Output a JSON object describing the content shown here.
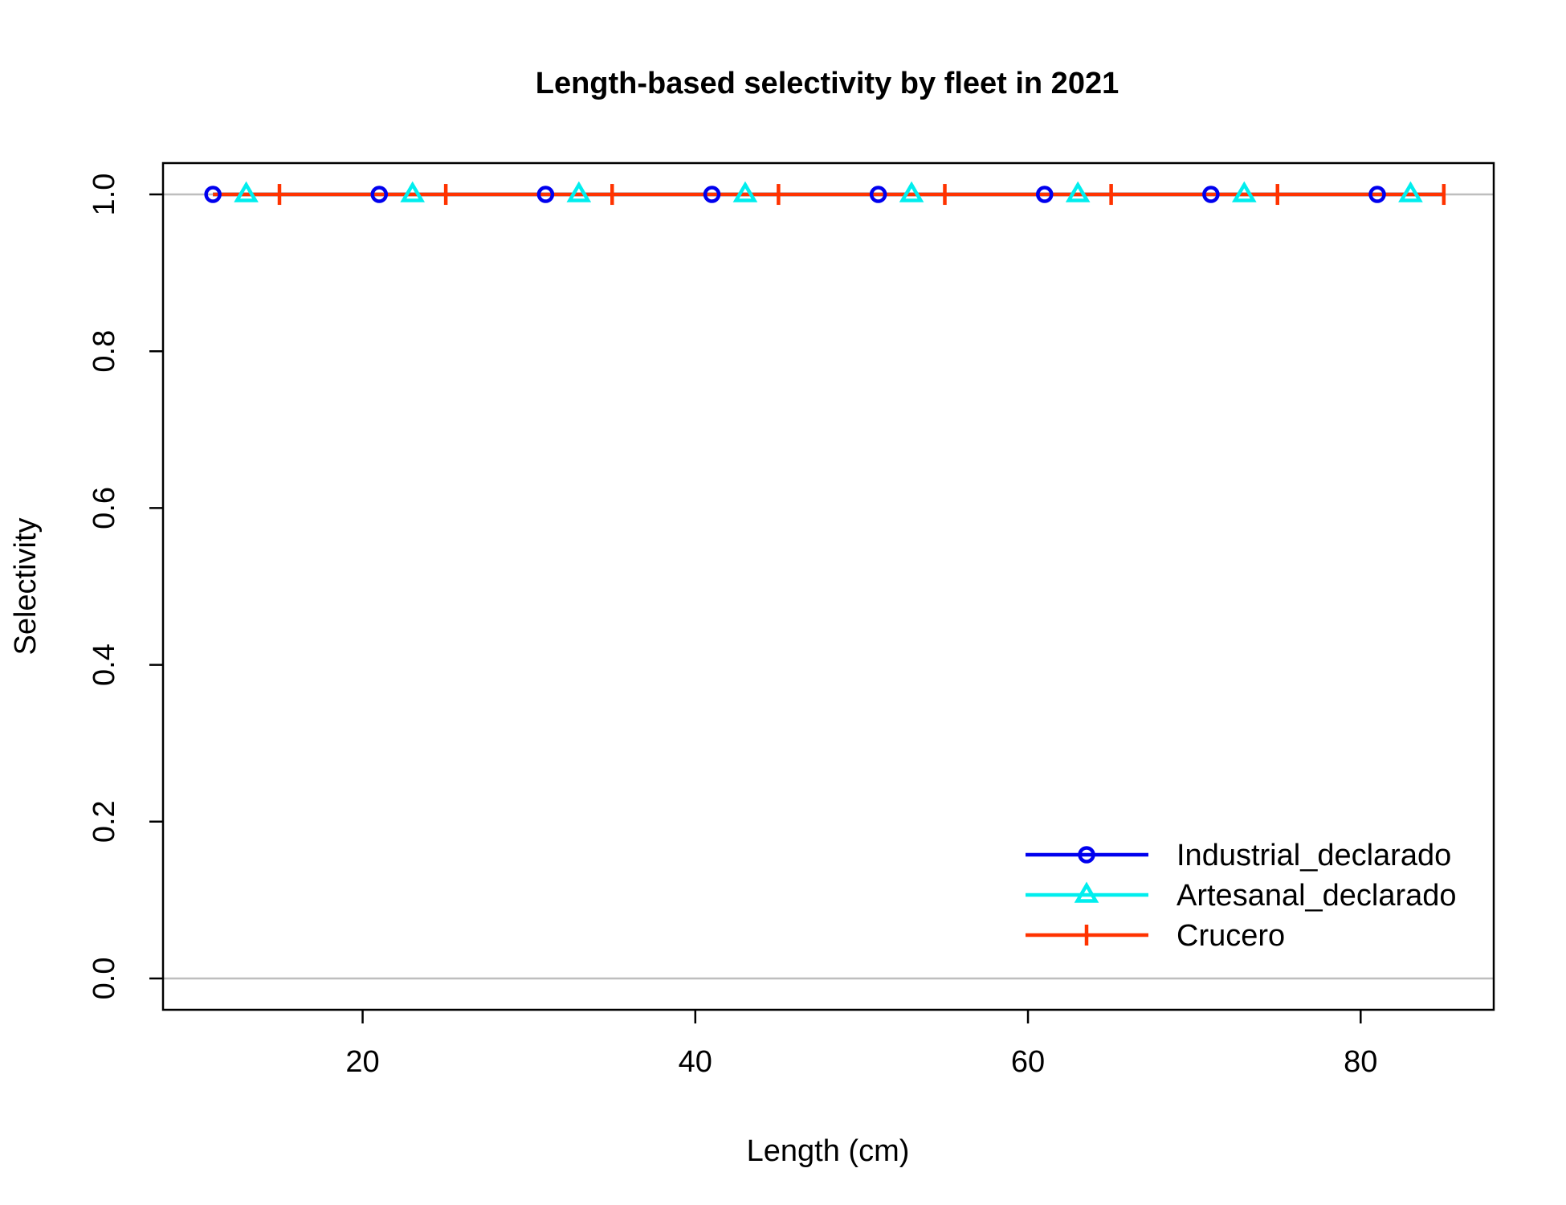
{
  "chart_data": {
    "type": "line",
    "title": "Length-based selectivity by fleet in 2021",
    "xlabel": "Length (cm)",
    "ylabel": "Selectivity",
    "xlim": [
      8,
      88
    ],
    "ylim": [
      -0.04,
      1.04
    ],
    "x_ticks": [
      20,
      40,
      60,
      80
    ],
    "x_tick_labels": [
      "20",
      "40",
      "60",
      "80"
    ],
    "y_ticks": [
      0.0,
      0.2,
      0.4,
      0.6,
      0.8,
      1.0
    ],
    "y_tick_labels": [
      "0.0",
      "0.2",
      "0.4",
      "0.6",
      "0.8",
      "1.0"
    ],
    "reference_lines": [
      0,
      1
    ],
    "grid": false,
    "legend_position": "bottom-right",
    "series": [
      {
        "name": "Industrial_declarado",
        "color": "#0000ee",
        "marker": "circle",
        "x": [
          11,
          12,
          13,
          14,
          15,
          16,
          17,
          18,
          19,
          20,
          21,
          22,
          23,
          24,
          25,
          26,
          27,
          28,
          29,
          30,
          31,
          32,
          33,
          34,
          35,
          36,
          37,
          38,
          39,
          40,
          41,
          42,
          43,
          44,
          45,
          46,
          47,
          48,
          49,
          50,
          51,
          52,
          53,
          54,
          55,
          56,
          57,
          58,
          59,
          60,
          61,
          62,
          63,
          64,
          65,
          66,
          67,
          68,
          69,
          70,
          71,
          72,
          73,
          74,
          75,
          76,
          77,
          78,
          79,
          80,
          81,
          82,
          83,
          84,
          85
        ],
        "y_constant": 1.0,
        "marker_x": [
          11,
          21,
          31,
          41,
          51,
          61,
          71,
          81
        ]
      },
      {
        "name": "Artesanal_declarado",
        "color": "#00eeee",
        "marker": "triangle",
        "x": [
          11,
          85
        ],
        "y_constant": 1.0,
        "marker_x": [
          13,
          23,
          33,
          43,
          53,
          63,
          73,
          83
        ]
      },
      {
        "name": "Crucero",
        "color": "#ff3300",
        "marker": "plus",
        "x": [
          11,
          85
        ],
        "y_constant": 1.0,
        "marker_x": [
          15,
          25,
          35,
          45,
          55,
          65,
          75,
          85
        ]
      }
    ]
  }
}
